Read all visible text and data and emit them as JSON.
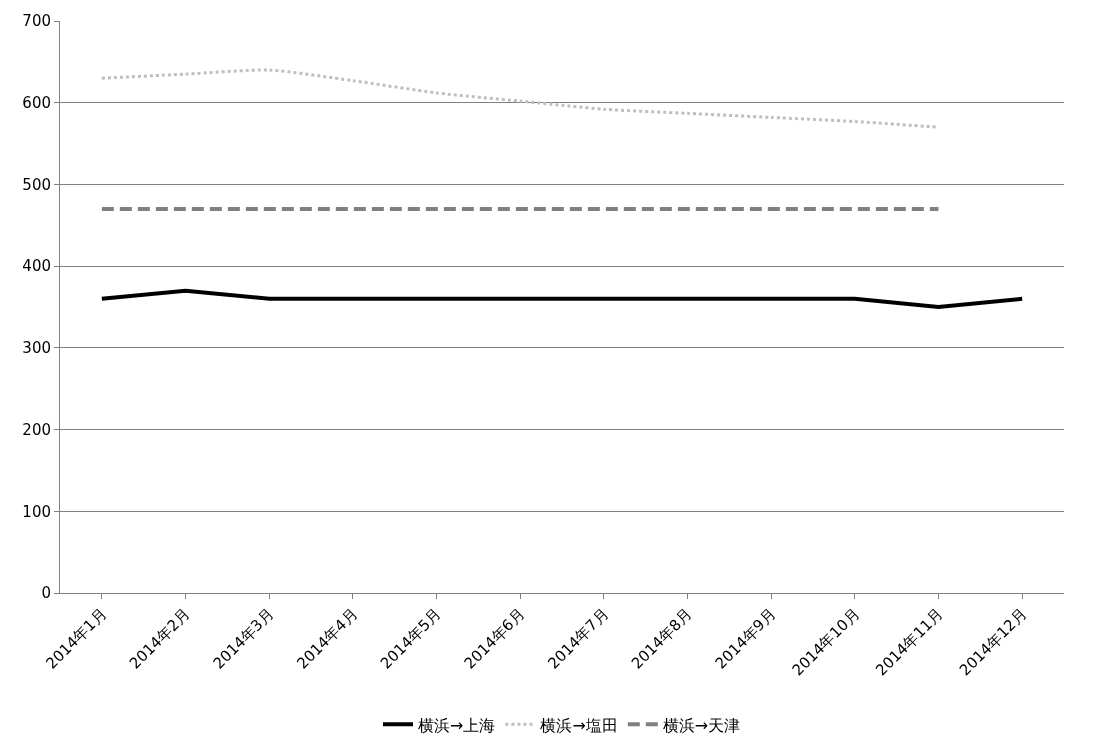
{
  "chart_data": {
    "type": "line",
    "categories": [
      "2014年1月",
      "2014年2月",
      "2014年3月",
      "2014年4月",
      "2014年5月",
      "2014年6月",
      "2014年7月",
      "2014年8月",
      "2014年9月",
      "2014年10月",
      "2014年11月",
      "2014年12月"
    ],
    "series": [
      {
        "name": "横浜→上海",
        "color": "#000000",
        "line_style": "solid",
        "values": [
          360,
          370,
          360,
          360,
          360,
          360,
          360,
          360,
          360,
          360,
          350,
          360
        ]
      },
      {
        "name": "横浜→塩田",
        "color": "#bfbfbf",
        "line_style": "dotted",
        "values": [
          630,
          635,
          640,
          627,
          612,
          602,
          592,
          587,
          582,
          577,
          570,
          null
        ]
      },
      {
        "name": "横浜→天津",
        "color": "#808080",
        "line_style": "dashed",
        "values": [
          470,
          470,
          470,
          470,
          470,
          470,
          470,
          470,
          470,
          470,
          470,
          null
        ]
      }
    ],
    "ylim": [
      0,
      700
    ],
    "yticks": [
      0,
      100,
      200,
      300,
      400,
      500,
      600,
      700
    ],
    "grid": "y",
    "legend": "bottom",
    "marker": "none"
  }
}
